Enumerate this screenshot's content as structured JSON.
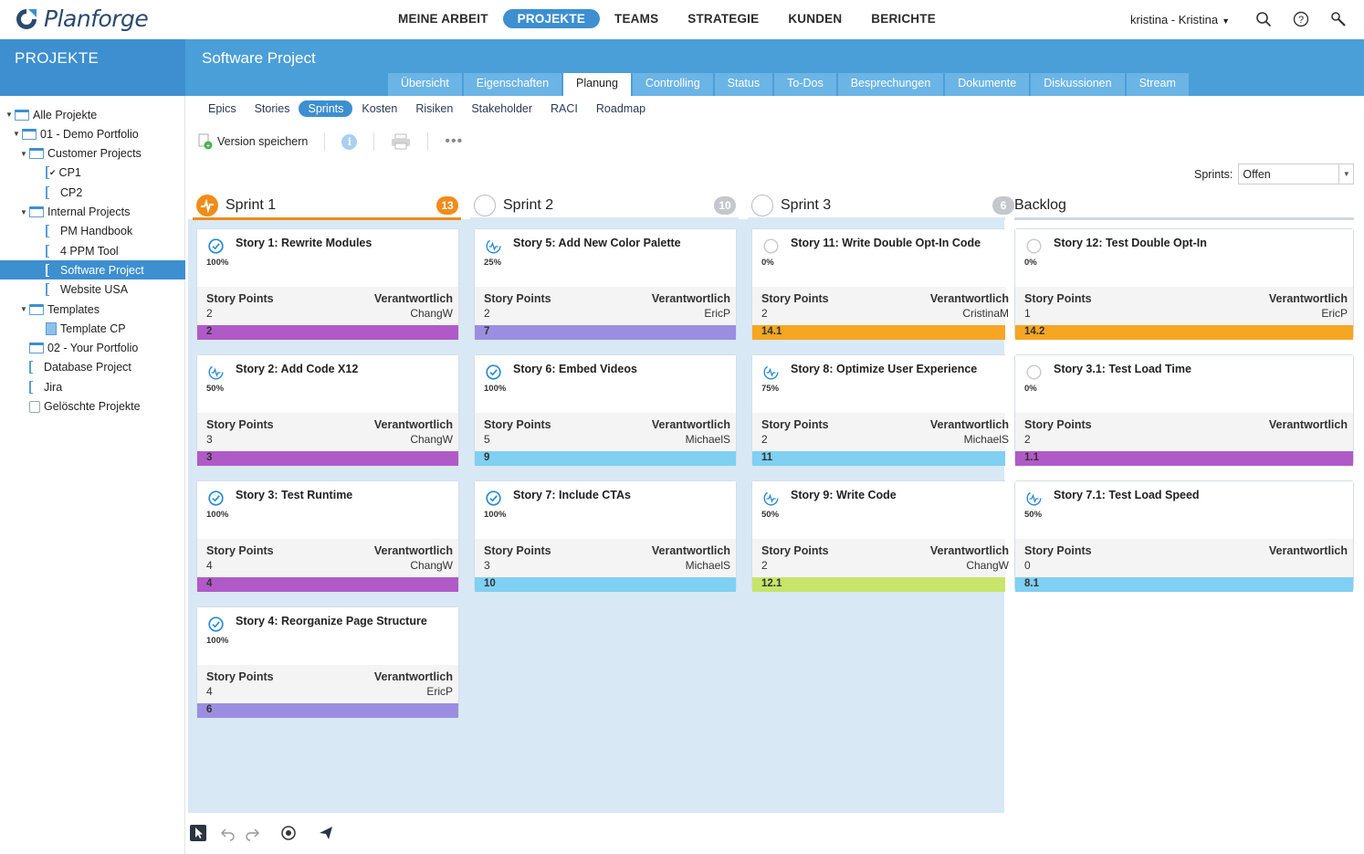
{
  "app": {
    "name": "Planforge",
    "user": "kristina - Kristina"
  },
  "mainnav": [
    {
      "label": "MEINE ARBEIT",
      "active": false
    },
    {
      "label": "PROJEKTE",
      "active": true
    },
    {
      "label": "TEAMS",
      "active": false
    },
    {
      "label": "STRATEGIE",
      "active": false
    },
    {
      "label": "KUNDEN",
      "active": false
    },
    {
      "label": "BERICHTE",
      "active": false
    }
  ],
  "topicons": [
    "search-icon",
    "help-icon",
    "tools-icon"
  ],
  "sidebar": {
    "title": "PROJEKTE",
    "tree": [
      {
        "label": "Alle Projekte",
        "icon": "folder",
        "toggle": "▼",
        "selected": false
      },
      {
        "label": "01 - Demo Portfolio",
        "icon": "folder",
        "toggle": "▼",
        "selected": false
      },
      {
        "label": "Customer Projects",
        "icon": "folder",
        "toggle": "▼",
        "selected": false
      },
      {
        "label": "CP1",
        "icon": "project-checked",
        "toggle": "",
        "selected": false
      },
      {
        "label": "CP2",
        "icon": "project",
        "toggle": "",
        "selected": false
      },
      {
        "label": "Internal Projects",
        "icon": "folder",
        "toggle": "▼",
        "selected": false
      },
      {
        "label": "PM Handbook",
        "icon": "project",
        "toggle": "",
        "selected": false
      },
      {
        "label": "4 PPM Tool",
        "icon": "project",
        "toggle": "",
        "selected": false
      },
      {
        "label": "Software Project",
        "icon": "project",
        "toggle": "",
        "selected": true
      },
      {
        "label": "Website USA",
        "icon": "project",
        "toggle": "",
        "selected": false
      },
      {
        "label": "Templates",
        "icon": "folder",
        "toggle": "▼",
        "selected": false
      },
      {
        "label": "Template CP",
        "icon": "doc",
        "toggle": "",
        "selected": false
      },
      {
        "label": "02 - Your Portfolio",
        "icon": "folder",
        "toggle": "",
        "selected": false
      },
      {
        "label": "Database Project",
        "icon": "project",
        "toggle": "",
        "selected": false
      },
      {
        "label": "Jira",
        "icon": "project",
        "toggle": "",
        "selected": false
      },
      {
        "label": "Gelöschte Projekte",
        "icon": "trash",
        "toggle": "",
        "selected": false
      }
    ]
  },
  "project": {
    "title": "Software Project"
  },
  "tabs": [
    {
      "label": "Übersicht",
      "active": false
    },
    {
      "label": "Eigenschaften",
      "active": false
    },
    {
      "label": "Planung",
      "active": true
    },
    {
      "label": "Controlling",
      "active": false
    },
    {
      "label": "Status",
      "active": false
    },
    {
      "label": "To-Dos",
      "active": false
    },
    {
      "label": "Besprechungen",
      "active": false
    },
    {
      "label": "Dokumente",
      "active": false
    },
    {
      "label": "Diskussionen",
      "active": false
    },
    {
      "label": "Stream",
      "active": false
    }
  ],
  "subnav": [
    {
      "label": "Epics",
      "active": false
    },
    {
      "label": "Stories",
      "active": false
    },
    {
      "label": "Sprints",
      "active": true
    },
    {
      "label": "Kosten",
      "active": false
    },
    {
      "label": "Risiken",
      "active": false
    },
    {
      "label": "Stakeholder",
      "active": false
    },
    {
      "label": "RACI",
      "active": false
    },
    {
      "label": "Roadmap",
      "active": false
    }
  ],
  "toolbar": {
    "save_label": "Version speichern",
    "info_glyph": "i",
    "more_glyph": "•••"
  },
  "filter": {
    "label": "Sprints:",
    "value": "Offen"
  },
  "labels": {
    "story_points": "Story Points",
    "responsible": "Verantwortlich"
  },
  "colors": {
    "accent": "#3d8fd0",
    "sprint_active": "#f08c1a",
    "purple": "#b05ac8",
    "violet": "#9b8ee0",
    "lightblue": "#7fd0f2",
    "orange": "#f5a623",
    "lime": "#c6e56a"
  },
  "columns": [
    {
      "title": "Sprint 1",
      "count": "13",
      "active": true,
      "count_color": "#f08c1a",
      "cards": [
        {
          "title": "Story 1: Rewrite Modules",
          "pct": "100%",
          "status": "done",
          "points": "2",
          "owner": "ChangW",
          "bar_label": "2",
          "bar_color": "#b05ac8"
        },
        {
          "title": "Story 2: Add Code X12",
          "pct": "50%",
          "status": "progress",
          "points": "3",
          "owner": "ChangW",
          "bar_label": "3",
          "bar_color": "#b05ac8"
        },
        {
          "title": "Story 3: Test Runtime",
          "pct": "100%",
          "status": "done",
          "points": "4",
          "owner": "ChangW",
          "bar_label": "4",
          "bar_color": "#b05ac8"
        },
        {
          "title": "Story 4: Reorganize Page Structure",
          "pct": "100%",
          "status": "done",
          "points": "4",
          "owner": "EricP",
          "bar_label": "6",
          "bar_color": "#9b8ee0"
        }
      ]
    },
    {
      "title": "Sprint 2",
      "count": "10",
      "active": false,
      "count_color": "#c4c8cc",
      "cards": [
        {
          "title": "Story 5: Add New Color Palette",
          "pct": "25%",
          "status": "progress",
          "points": "2",
          "owner": "EricP",
          "bar_label": "7",
          "bar_color": "#9b8ee0"
        },
        {
          "title": "Story 6: Embed Videos",
          "pct": "100%",
          "status": "done",
          "points": "5",
          "owner": "MichaelS",
          "bar_label": "9",
          "bar_color": "#7fd0f2"
        },
        {
          "title": "Story 7: Include CTAs",
          "pct": "100%",
          "status": "done",
          "points": "3",
          "owner": "MichaelS",
          "bar_label": "10",
          "bar_color": "#7fd0f2"
        }
      ]
    },
    {
      "title": "Sprint 3",
      "count": "6",
      "active": false,
      "count_color": "#c4c8cc",
      "cards": [
        {
          "title": "Story 11: Write Double Opt-In Code",
          "pct": "0%",
          "status": "open",
          "points": "2",
          "owner": "CristinaM",
          "bar_label": "14.1",
          "bar_color": "#f5a623"
        },
        {
          "title": "Story 8: Optimize User Experience",
          "pct": "75%",
          "status": "progress",
          "points": "2",
          "owner": "MichaelS",
          "bar_label": "11",
          "bar_color": "#7fd0f2"
        },
        {
          "title": "Story 9: Write Code",
          "pct": "50%",
          "status": "progress",
          "points": "2",
          "owner": "ChangW",
          "bar_label": "12.1",
          "bar_color": "#c6e56a"
        }
      ]
    },
    {
      "title": "Backlog",
      "count": "",
      "active": false,
      "count_color": "",
      "cards": [
        {
          "title": "Story 12: Test Double Opt-In",
          "pct": "0%",
          "status": "open",
          "points": "1",
          "owner": "EricP",
          "bar_label": "14.2",
          "bar_color": "#f5a623"
        },
        {
          "title": "Story 3.1: Test Load Time",
          "pct": "0%",
          "status": "open",
          "points": "2",
          "owner": "",
          "bar_label": "1.1",
          "bar_color": "#b05ac8"
        },
        {
          "title": "Story 7.1: Test Load Speed",
          "pct": "50%",
          "status": "progress",
          "points": "0",
          "owner": "",
          "bar_label": "8.1",
          "bar_color": "#7fd0f2"
        }
      ]
    }
  ],
  "bottom_tools": [
    "pointer-icon",
    "undo-icon",
    "redo-icon",
    "magic-icon",
    "send-icon"
  ]
}
